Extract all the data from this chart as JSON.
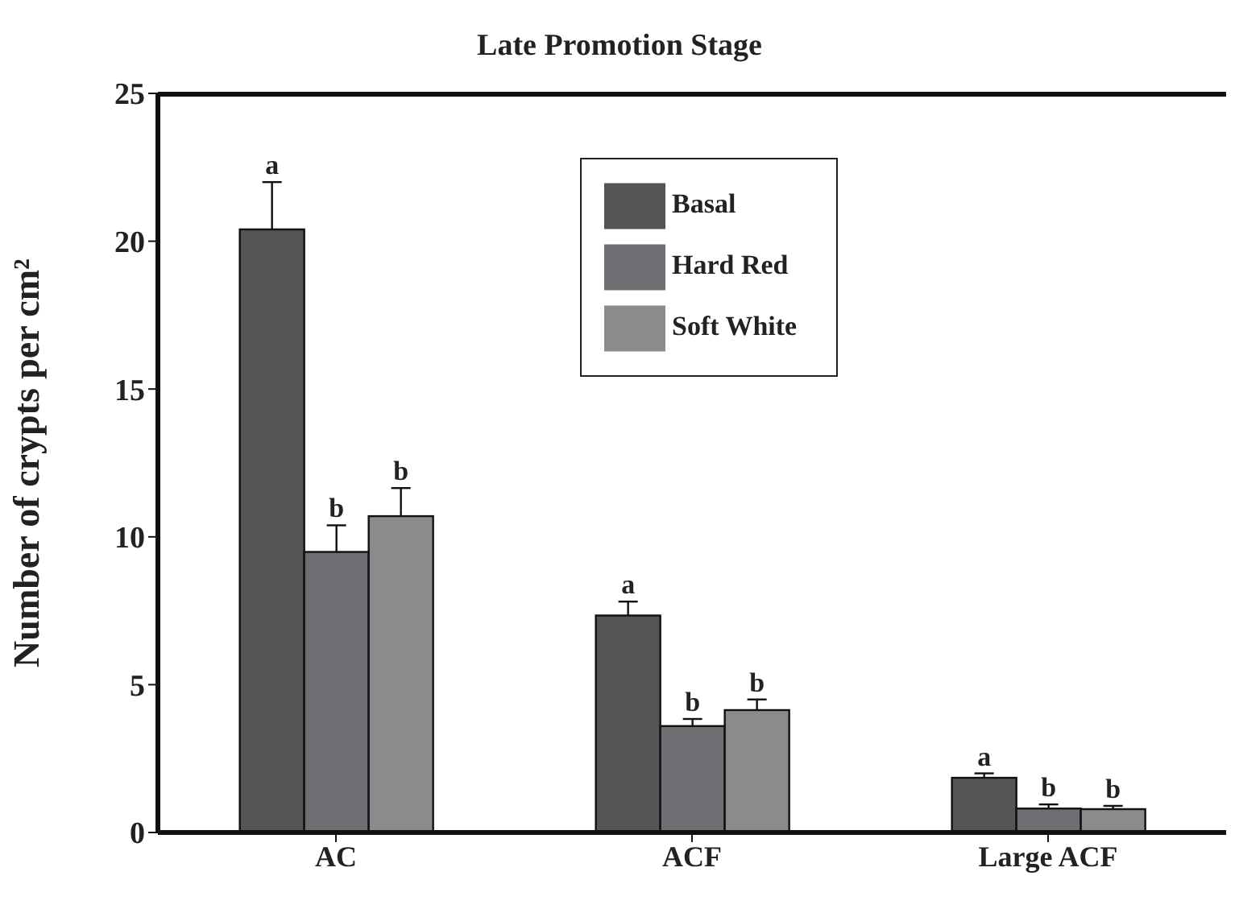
{
  "chart_data": {
    "type": "bar",
    "title": "Late Promotion Stage",
    "ylabel": "Number of crypts per cm²",
    "categories": [
      "AC",
      "ACF",
      "Large ACF"
    ],
    "series": [
      {
        "name": "Basal",
        "color": "#545557",
        "values": [
          20.4,
          7.34,
          1.85
        ],
        "errors": [
          1.6,
          0.47,
          0.15
        ],
        "value_labels": [
          "a",
          "a",
          "a"
        ]
      },
      {
        "name": "Hard Red",
        "color": "#6e6f73",
        "values": [
          9.49,
          3.6,
          0.81
        ],
        "errors": [
          0.9,
          0.24,
          0.14
        ],
        "value_labels": [
          "b",
          "b",
          "b"
        ]
      },
      {
        "name": "Soft White",
        "color": "#8a8b8d",
        "values": [
          10.7,
          4.14,
          0.79
        ],
        "errors": [
          0.95,
          0.36,
          0.11
        ],
        "value_labels": [
          "b",
          "b",
          "b"
        ]
      }
    ],
    "ylim": [
      0,
      25
    ],
    "yticks": [
      0,
      5,
      10,
      15,
      20,
      25
    ],
    "legend": "top right"
  }
}
